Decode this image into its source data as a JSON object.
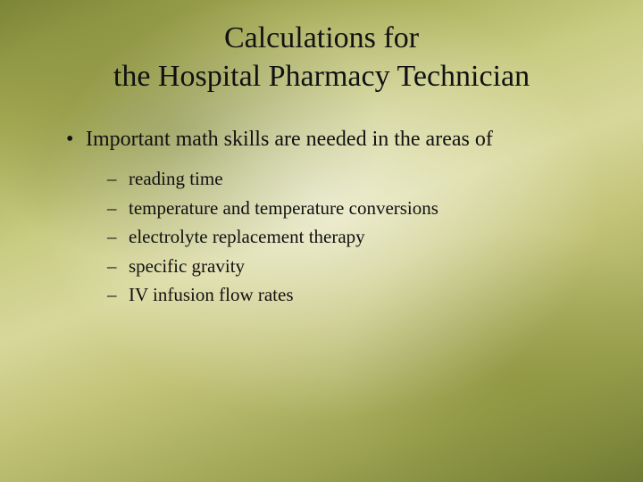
{
  "slide": {
    "background": {
      "gradient_stops": [
        "#7c8536",
        "#a6ac55",
        "#c9cc83",
        "#d7d79a",
        "#c2c277",
        "#9aa14f",
        "#6f7a33"
      ],
      "highlight_center": "#ffffff",
      "highlight_opacity": 0.55,
      "dark_patch_color": "#5a641e"
    },
    "title_line1": "Calculations for",
    "title_line2": "the Hospital Pharmacy Technician",
    "title_fontsize": 34,
    "title_color": "#111111",
    "bullet_l1": "Important math skills are needed in the areas of",
    "bullet_l1_fontsize": 24,
    "bullet_l1_marker": "•",
    "sub_bullets": {
      "0": "reading time",
      "1": "temperature and temperature conversions",
      "2": "electrolyte replacement therapy",
      "3": "specific gravity",
      "4": "IV infusion flow rates"
    },
    "bullet_l2_fontsize": 21,
    "bullet_l2_marker": "–",
    "text_color": "#111111",
    "font_family": "Georgia/Times New Roman serif"
  }
}
